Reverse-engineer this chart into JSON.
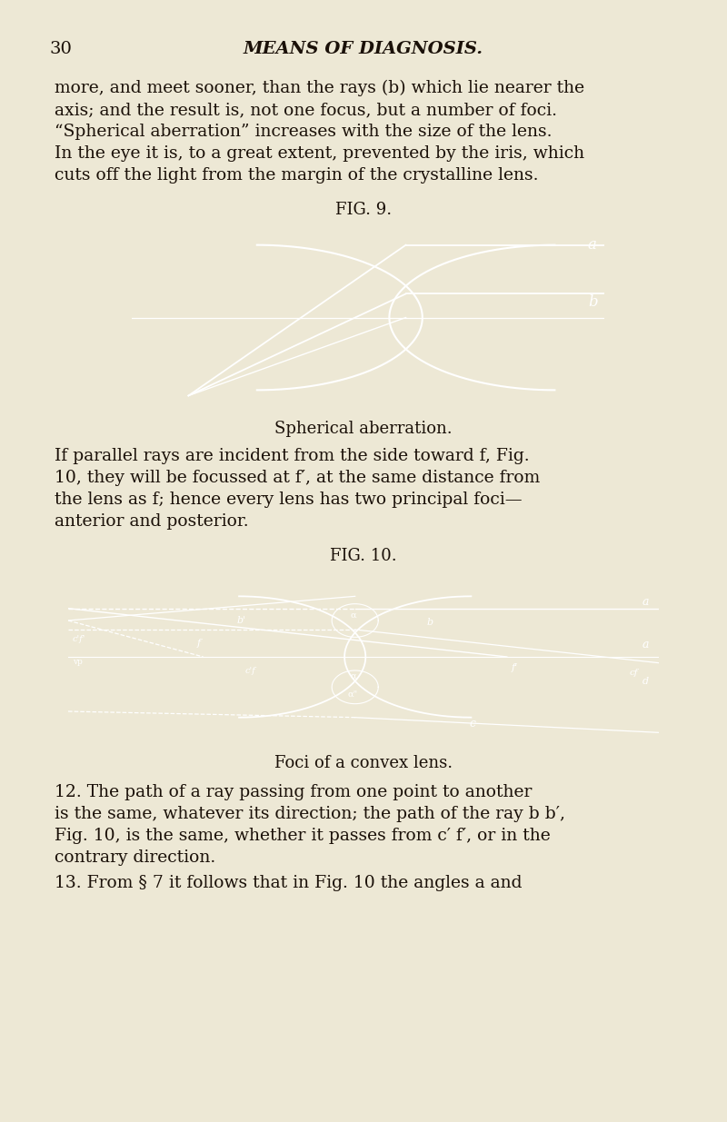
{
  "bg_color": "#ede8d5",
  "text_color": "#1a1008",
  "fig_bg": "#0d0d0d",
  "page_number": "30",
  "header": "MEANS OF DIAGNOSIS.",
  "para1_lines": [
    "more, and meet sooner, than the rays (b) which lie nearer the",
    "axis; and the result is, not one focus, but a number of foci.",
    "“Spherical aberration” increases with the size of the lens.",
    "In the eye it is, to a great extent, prevented by the iris, which",
    "cuts off the light from the margin of the crystalline lens."
  ],
  "fig9_label": "FIG. 9.",
  "fig9_caption": "Spherical aberration.",
  "para2_lines": [
    "If parallel rays are incident from the side toward f, Fig.",
    "10, they will be focussed at f′, at the same distance from",
    "the lens as f; hence every lens has two principal foci—",
    "anterior and posterior."
  ],
  "fig10_label": "FIG. 10.",
  "fig10_caption": "Foci of a convex lens.",
  "para3_lines": [
    "12. The path of a ray passing from one point to another",
    "is the same, whatever its direction; the path of the ray b b′,",
    "Fig. 10, is the same, whether it passes from c′ f′, or in the",
    "contrary direction."
  ],
  "para4": "13. From § 7 it follows that in Fig. 10 the angles a and"
}
